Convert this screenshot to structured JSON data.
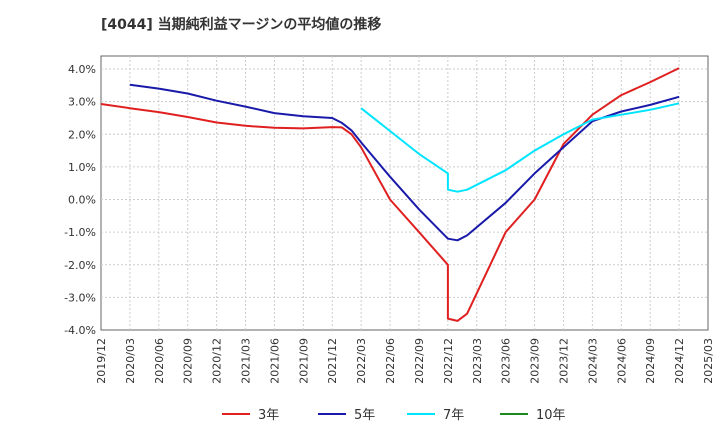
{
  "chart_data": {
    "type": "line",
    "title": "[4044]  当期純利益マージンの平均値の推移",
    "xlabel": "",
    "ylabel": "",
    "x": [
      "2019/12",
      "2020/03",
      "2020/06",
      "2020/09",
      "2020/12",
      "2021/03",
      "2021/06",
      "2021/09",
      "2021/12",
      "2022/03",
      "2022/06",
      "2022/09",
      "2022/12",
      "2023/03",
      "2023/06",
      "2023/09",
      "2023/12",
      "2024/03",
      "2024/06",
      "2024/09",
      "2024/12",
      "2025/03"
    ],
    "yticks": [
      "4.0%",
      "3.0%",
      "2.0%",
      "1.0%",
      "0.0%",
      "-1.0%",
      "-2.0%",
      "-3.0%",
      "-4.0%"
    ],
    "ylim": [
      -4.0,
      4.4
    ],
    "grid": true,
    "legend_position": "bottom",
    "series": [
      {
        "name": "3年",
        "color": "#e02020",
        "points": [
          [
            "2019/12",
            2.93
          ],
          [
            "2020/03",
            2.8
          ],
          [
            "2020/06",
            2.68
          ],
          [
            "2020/09",
            2.53
          ],
          [
            "2020/12",
            2.36
          ],
          [
            "2021/03",
            2.26
          ],
          [
            "2021/06",
            2.2
          ],
          [
            "2021/09",
            2.18
          ],
          [
            "2021/12",
            2.22
          ],
          [
            "2022/01",
            2.21
          ],
          [
            "2022/02",
            2.0
          ],
          [
            "2022/03",
            1.6
          ],
          [
            "2022/06",
            0.0
          ],
          [
            "2022/09",
            -1.0
          ],
          [
            "2022/12",
            -2.0
          ],
          [
            "2022/12",
            -3.65
          ],
          [
            "2023/01",
            -3.72
          ],
          [
            "2023/02",
            -3.5
          ],
          [
            "2023/06",
            -1.0
          ],
          [
            "2023/09",
            0.0
          ],
          [
            "2023/12",
            1.7
          ],
          [
            "2024/03",
            2.6
          ],
          [
            "2024/06",
            3.2
          ],
          [
            "2024/09",
            3.6
          ],
          [
            "2024/12",
            4.03
          ]
        ]
      },
      {
        "name": "5年",
        "color": "#1a1aaa",
        "points": [
          [
            "2020/03",
            3.52
          ],
          [
            "2020/06",
            3.4
          ],
          [
            "2020/09",
            3.25
          ],
          [
            "2020/12",
            3.03
          ],
          [
            "2021/03",
            2.85
          ],
          [
            "2021/06",
            2.65
          ],
          [
            "2021/09",
            2.55
          ],
          [
            "2021/12",
            2.5
          ],
          [
            "2022/01",
            2.35
          ],
          [
            "2022/02",
            2.12
          ],
          [
            "2022/03",
            1.75
          ],
          [
            "2022/06",
            0.7
          ],
          [
            "2022/09",
            -0.3
          ],
          [
            "2022/12",
            -1.2
          ],
          [
            "2023/01",
            -1.25
          ],
          [
            "2023/02",
            -1.1
          ],
          [
            "2023/06",
            -0.1
          ],
          [
            "2023/09",
            0.8
          ],
          [
            "2023/12",
            1.6
          ],
          [
            "2024/03",
            2.4
          ],
          [
            "2024/06",
            2.7
          ],
          [
            "2024/09",
            2.9
          ],
          [
            "2024/12",
            3.15
          ]
        ]
      },
      {
        "name": "7年",
        "color": "#00e5ff",
        "points": [
          [
            "2022/03",
            2.8
          ],
          [
            "2022/06",
            2.1
          ],
          [
            "2022/09",
            1.4
          ],
          [
            "2022/12",
            0.8
          ],
          [
            "2022/12",
            0.3
          ],
          [
            "2023/01",
            0.24
          ],
          [
            "2023/02",
            0.3
          ],
          [
            "2023/06",
            0.9
          ],
          [
            "2023/09",
            1.5
          ],
          [
            "2023/12",
            2.0
          ],
          [
            "2024/03",
            2.45
          ],
          [
            "2024/06",
            2.6
          ],
          [
            "2024/09",
            2.75
          ],
          [
            "2024/12",
            2.95
          ]
        ]
      },
      {
        "name": "10年",
        "color": "#1a8a1a",
        "points": []
      }
    ]
  }
}
